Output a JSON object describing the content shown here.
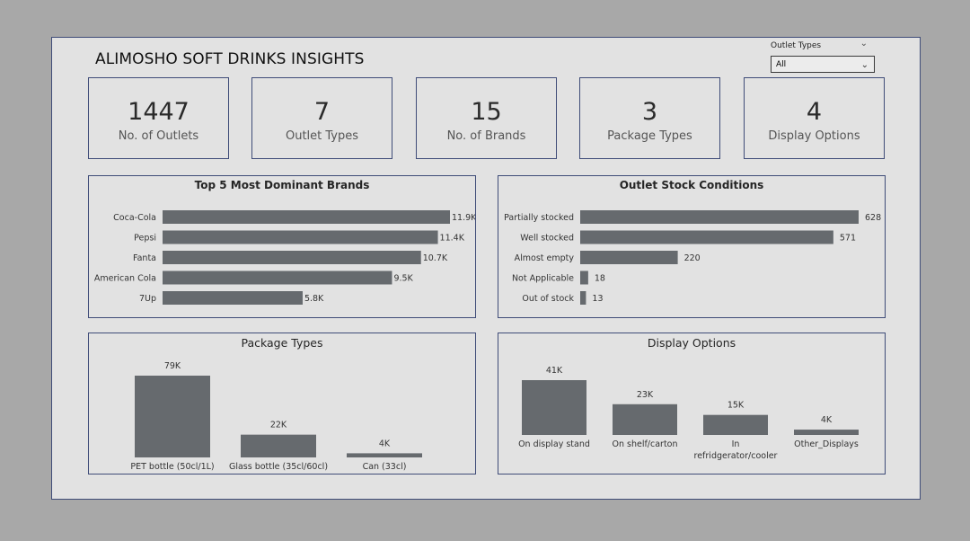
{
  "report": {
    "title": "ALIMOSHO SOFT DRINKS INSIGHTS"
  },
  "slicer": {
    "label": "Outlet Types",
    "selected": "All"
  },
  "kpis": [
    {
      "value": "1447",
      "label": "No. of Outlets"
    },
    {
      "value": "7",
      "label": "Outlet Types"
    },
    {
      "value": "15",
      "label": "No. of Brands"
    },
    {
      "value": "3",
      "label": "Package Types"
    },
    {
      "value": "4",
      "label": "Display Options"
    }
  ],
  "colors": {
    "bar": "#666a6e",
    "border": "#3f4c78",
    "panel": "#e2e2e2"
  },
  "chart_data": [
    {
      "type": "bar",
      "orientation": "horizontal",
      "title": "Top 5 Most Dominant Brands",
      "categories": [
        "Coca-Cola",
        "Pepsi",
        "Fanta",
        "American Cola",
        "7Up"
      ],
      "values": [
        11900,
        11400,
        10700,
        9500,
        5800
      ],
      "labels": [
        "11.9K",
        "11.4K",
        "10.7K",
        "9.5K",
        "5.8K"
      ],
      "xlim": [
        0,
        11900
      ],
      "grid": false
    },
    {
      "type": "bar",
      "orientation": "horizontal",
      "title": "Outlet Stock Conditions",
      "categories": [
        "Partially stocked",
        "Well stocked",
        "Almost empty",
        "Not Applicable",
        "Out of stock"
      ],
      "values": [
        628,
        571,
        220,
        18,
        13
      ],
      "labels": [
        "628",
        "571",
        "220",
        "18",
        "13"
      ],
      "xlim": [
        0,
        628
      ],
      "grid": false
    },
    {
      "type": "bar",
      "orientation": "vertical",
      "title": "Package Types",
      "categories": [
        "PET bottle (50cl/1L)",
        "Glass bottle (35cl/60cl)",
        "Can (33cl)"
      ],
      "values": [
        79000,
        22000,
        4000
      ],
      "labels": [
        "79K",
        "22K",
        "4K"
      ],
      "ylim": [
        0,
        79000
      ],
      "grid": false
    },
    {
      "type": "bar",
      "orientation": "vertical",
      "title": "Display Options",
      "categories": [
        "On display stand",
        "On shelf/carton",
        "In refridgerator/cooler",
        "Other_Displays"
      ],
      "values": [
        41000,
        23000,
        15000,
        4000
      ],
      "labels": [
        "41K",
        "23K",
        "15K",
        "4K"
      ],
      "ylim": [
        0,
        41000
      ],
      "grid": false
    }
  ]
}
